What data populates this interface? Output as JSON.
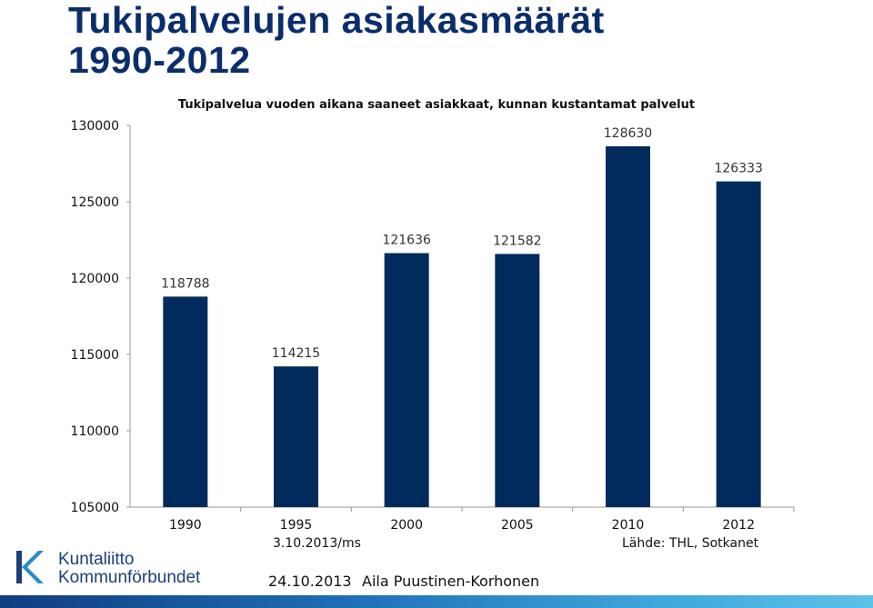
{
  "title_line1": "Tukipalvelujen asiakasmäärät",
  "title_line2": "1990-2012",
  "chart_data": {
    "type": "bar",
    "title": "Tukipalvelua vuoden aikana saaneet asiakkaat, kunnan kustantamat palvelut",
    "categories": [
      "1990",
      "1995",
      "2000",
      "2005",
      "2010",
      "2012"
    ],
    "values": [
      118788,
      114215,
      121636,
      121582,
      128630,
      126333
    ],
    "ylim": [
      105000,
      130000
    ],
    "yticks": [
      105000,
      110000,
      115000,
      120000,
      125000,
      130000
    ],
    "xlabel": "",
    "ylabel": "",
    "grid": false,
    "bar_color": "#002b5c"
  },
  "notes": {
    "left": "3.10.2013/ms",
    "right": "Lähde: THL, Sotkanet"
  },
  "logo": {
    "line1": "Kuntaliitto",
    "line2": "Kommunförbundet"
  },
  "footer": {
    "date": "24.10.2013",
    "author": "Aila Puustinen-Korhonen"
  }
}
